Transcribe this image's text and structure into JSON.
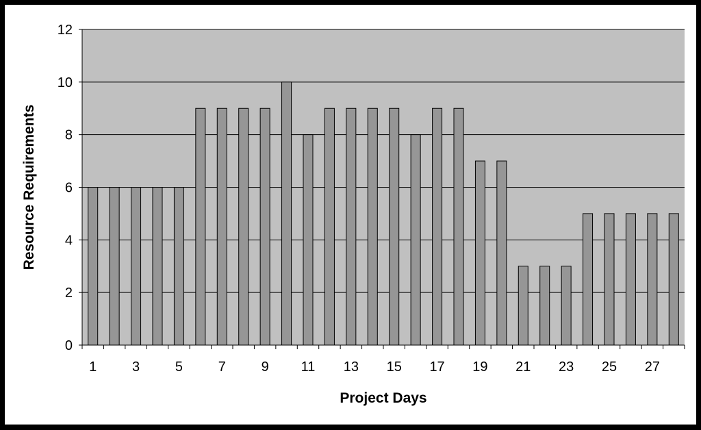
{
  "chart_data": {
    "type": "bar",
    "title": "",
    "xlabel": "Project Days",
    "ylabel": "Resource Requirements",
    "categories": [
      1,
      2,
      3,
      4,
      5,
      6,
      7,
      8,
      9,
      10,
      11,
      12,
      13,
      14,
      15,
      16,
      17,
      18,
      19,
      20,
      21,
      22,
      23,
      24,
      25,
      26,
      27,
      28
    ],
    "values": [
      6,
      6,
      6,
      6,
      6,
      9,
      9,
      9,
      9,
      10,
      8,
      9,
      9,
      9,
      9,
      8,
      9,
      9,
      7,
      7,
      3,
      3,
      3,
      5,
      5,
      5,
      5,
      5
    ],
    "x_tick_labels": [
      "1",
      "3",
      "5",
      "7",
      "9",
      "11",
      "13",
      "15",
      "17",
      "19",
      "21",
      "23",
      "25",
      "27"
    ],
    "y_tick_labels": [
      "0",
      "2",
      "4",
      "6",
      "8",
      "10",
      "12"
    ],
    "y_ticks": [
      0,
      2,
      4,
      6,
      8,
      10,
      12
    ],
    "ylim": [
      0,
      12
    ],
    "grid": true,
    "legend": "none",
    "colors": {
      "frame": "#000000",
      "page_background": "#ffffff",
      "plot_background": "#c0c0c0",
      "bar_fill": "#969696",
      "bar_stroke": "#000000",
      "gridline": "#000000"
    }
  }
}
